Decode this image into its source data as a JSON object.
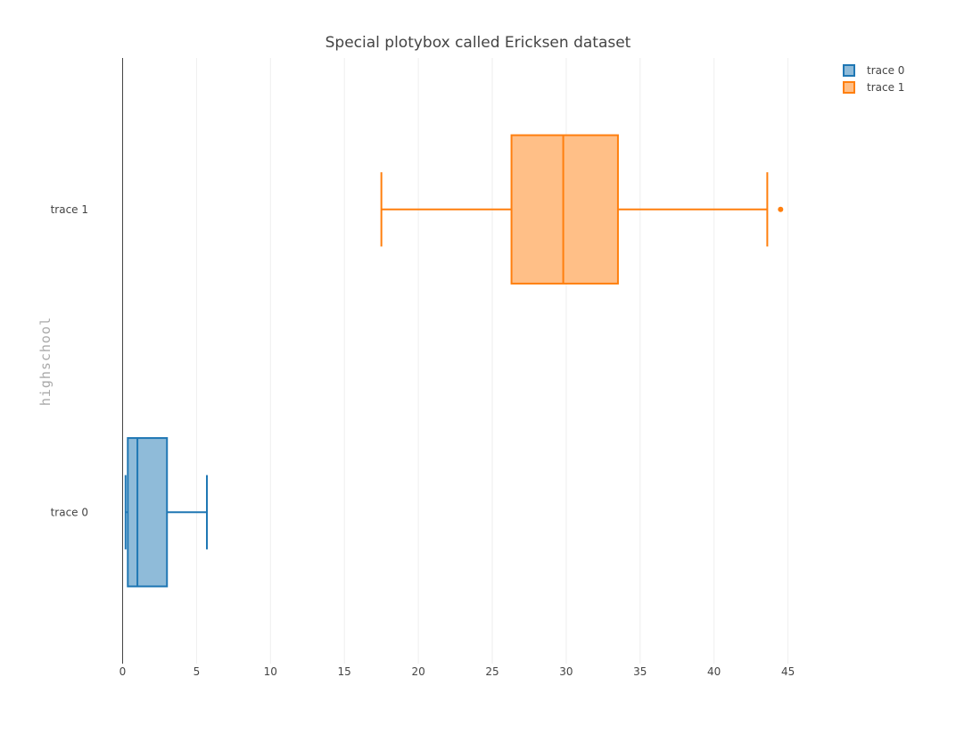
{
  "chart_data": {
    "type": "box",
    "orientation": "horizontal",
    "title": "Special plotybox called Ericksen dataset",
    "xlabel": "",
    "ylabel": "highschool",
    "xlim": [
      0,
      45
    ],
    "xticks": [
      0,
      5,
      10,
      15,
      20,
      25,
      30,
      35,
      40,
      45
    ],
    "grid": true,
    "legend_position": "top-right",
    "series": [
      {
        "name": "trace 0",
        "color": "#1f77b4",
        "fill": "#8fbbd9",
        "min": 0.2,
        "q1": 0.35,
        "median": 1.0,
        "q3": 3.0,
        "max": 5.7,
        "outliers": []
      },
      {
        "name": "trace 1",
        "color": "#ff7f0e",
        "fill": "#ffbf87",
        "min": 17.5,
        "q1": 26.3,
        "median": 29.8,
        "q3": 33.5,
        "max": 43.6,
        "outliers": [
          44.5
        ]
      }
    ]
  }
}
